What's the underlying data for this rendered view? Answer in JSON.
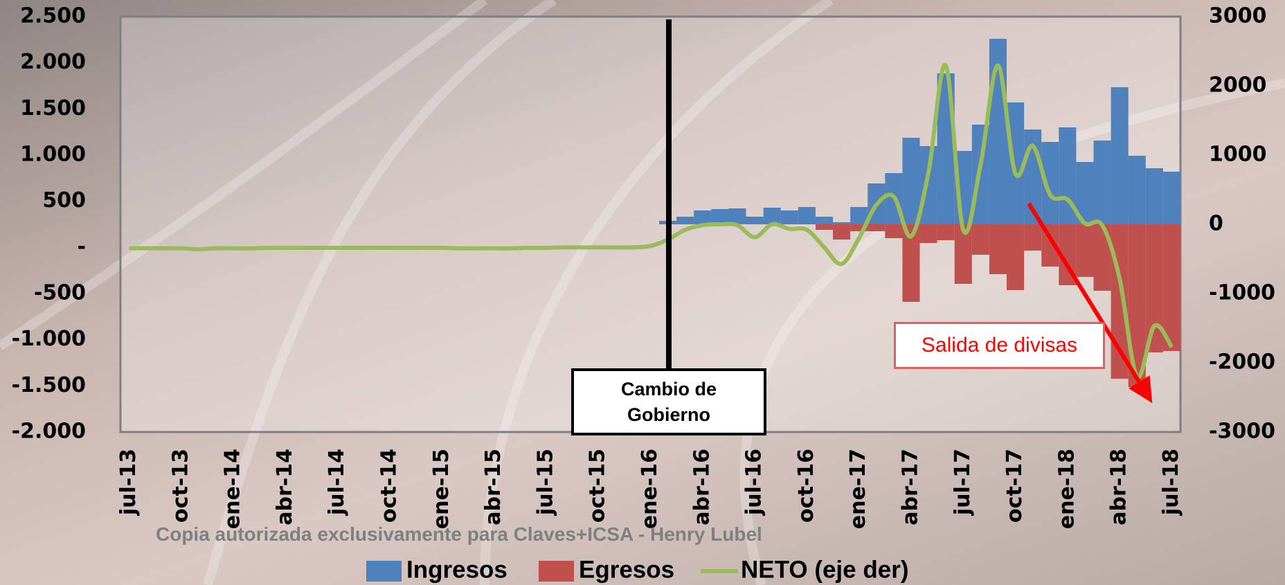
{
  "chart_data": {
    "type": "bar-line",
    "categories": [
      "jul-13",
      null,
      null,
      "oct-13",
      null,
      null,
      "ene-14",
      null,
      null,
      "abr-14",
      null,
      null,
      "jul-14",
      null,
      null,
      "oct-14",
      null,
      null,
      "ene-15",
      null,
      null,
      "abr-15",
      null,
      null,
      "jul-15",
      null,
      null,
      "oct-15",
      null,
      null,
      "ene-16",
      null,
      null,
      "abr-16",
      null,
      null,
      "jul-16",
      null,
      null,
      "oct-16",
      null,
      null,
      "ene-17",
      null,
      null,
      "abr-17",
      null,
      null,
      "jul-17",
      null,
      null,
      "oct-17",
      null,
      null,
      "ene-18",
      null,
      null,
      "abr-18",
      null,
      null,
      "jul-18"
    ],
    "series": [
      {
        "name": "Ingresos",
        "color": "#4f81bd",
        "axis": "y2",
        "kind": "bar",
        "values": [
          null,
          null,
          null,
          null,
          null,
          null,
          null,
          null,
          null,
          null,
          null,
          null,
          null,
          null,
          null,
          null,
          null,
          null,
          null,
          null,
          null,
          null,
          null,
          null,
          null,
          null,
          null,
          null,
          null,
          null,
          null,
          50,
          110,
          200,
          220,
          230,
          110,
          240,
          200,
          250,
          110,
          30,
          250,
          590,
          740,
          1250,
          1130,
          2180,
          1060,
          1440,
          2680,
          1760,
          1370,
          1190,
          1400,
          900,
          1210,
          1980,
          990,
          810,
          760
        ]
      },
      {
        "name": "Egresos",
        "color": "#c0504d",
        "axis": "y2",
        "kind": "bar",
        "values": [
          null,
          null,
          null,
          null,
          null,
          null,
          null,
          null,
          null,
          null,
          null,
          null,
          null,
          null,
          null,
          null,
          null,
          null,
          null,
          null,
          null,
          null,
          null,
          null,
          null,
          null,
          null,
          null,
          null,
          null,
          null,
          null,
          null,
          null,
          null,
          null,
          null,
          null,
          null,
          null,
          -80,
          -220,
          -100,
          -100,
          -200,
          -1120,
          -270,
          -230,
          -860,
          -440,
          -720,
          -950,
          -380,
          -610,
          -880,
          -760,
          -960,
          -2230,
          -2350,
          -1850,
          -1830
        ]
      },
      {
        "name": "NETO (eje der)",
        "color": "#9bbb59",
        "kind": "line",
        "values": [
          -10,
          -10,
          -10,
          -10,
          -20,
          -10,
          -10,
          -10,
          -5,
          -5,
          -5,
          -5,
          -5,
          -5,
          -5,
          -5,
          -5,
          -5,
          -5,
          -10,
          -10,
          -10,
          -10,
          -5,
          -5,
          0,
          0,
          0,
          0,
          0,
          15,
          85,
          190,
          240,
          250,
          240,
          110,
          250,
          200,
          190,
          0,
          -180,
          100,
          460,
          550,
          120,
          810,
          1970,
          190,
          900,
          1970,
          800,
          1100,
          570,
          520,
          260,
          240,
          -340,
          -1400,
          -850,
          -1080
        ]
      }
    ],
    "ylim": [
      -2000,
      2500
    ],
    "yticks": [
      {
        "value": 2500,
        "label": "2.500"
      },
      {
        "value": 2000,
        "label": "2.000"
      },
      {
        "value": 1500,
        "label": "1.500"
      },
      {
        "value": 1000,
        "label": "1.000"
      },
      500,
      {
        "value": 0,
        "label": "-"
      },
      -500,
      {
        "value": -1000,
        "label": "-1.000"
      },
      {
        "value": -1500,
        "label": "-1.500"
      },
      {
        "value": -2000,
        "label": "-2.000"
      }
    ],
    "y2lim": [
      -3000,
      3000
    ],
    "y2ticks": [
      3000,
      2000,
      1000,
      0,
      -1000,
      -2000,
      -3000
    ],
    "annotations": [
      "Cambio de Gobierno",
      "Salida de divisas"
    ],
    "watermark": "Copia autorizada exclusivamente para Claves+ICSA - Henry Lubel"
  }
}
